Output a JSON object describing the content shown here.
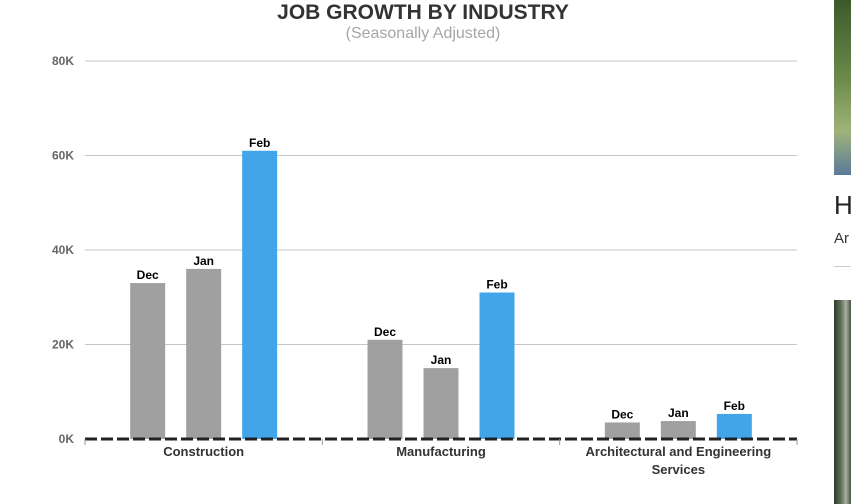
{
  "chart_data": {
    "type": "bar",
    "title": "JOB GROWTH BY INDUSTRY",
    "subtitle": "(Seasonally Adjusted)",
    "categories": [
      "Construction",
      "Manufacturing",
      "Architectural and Engineering Services"
    ],
    "category_lines": [
      [
        "Construction"
      ],
      [
        "Manufacturing"
      ],
      [
        "Architectural and Engineering",
        "Services"
      ]
    ],
    "series": [
      {
        "name": "Dec",
        "color": "#a0a0a0",
        "values": [
          33000,
          21000,
          3500
        ]
      },
      {
        "name": "Jan",
        "color": "#a0a0a0",
        "values": [
          36000,
          15000,
          3800
        ]
      },
      {
        "name": "Feb",
        "color": "#42a5ea",
        "values": [
          61000,
          31000,
          5300
        ]
      }
    ],
    "ylim": [
      0,
      80000
    ],
    "yticks": [
      0,
      20000,
      40000,
      60000,
      80000
    ],
    "ytick_labels": [
      "0K",
      "20K",
      "40K",
      "60K",
      "80K"
    ],
    "grid": true,
    "legend": "none",
    "data_labels": "series name above each bar"
  },
  "sidebar": {
    "heading": "H",
    "subtext": "Ar"
  }
}
